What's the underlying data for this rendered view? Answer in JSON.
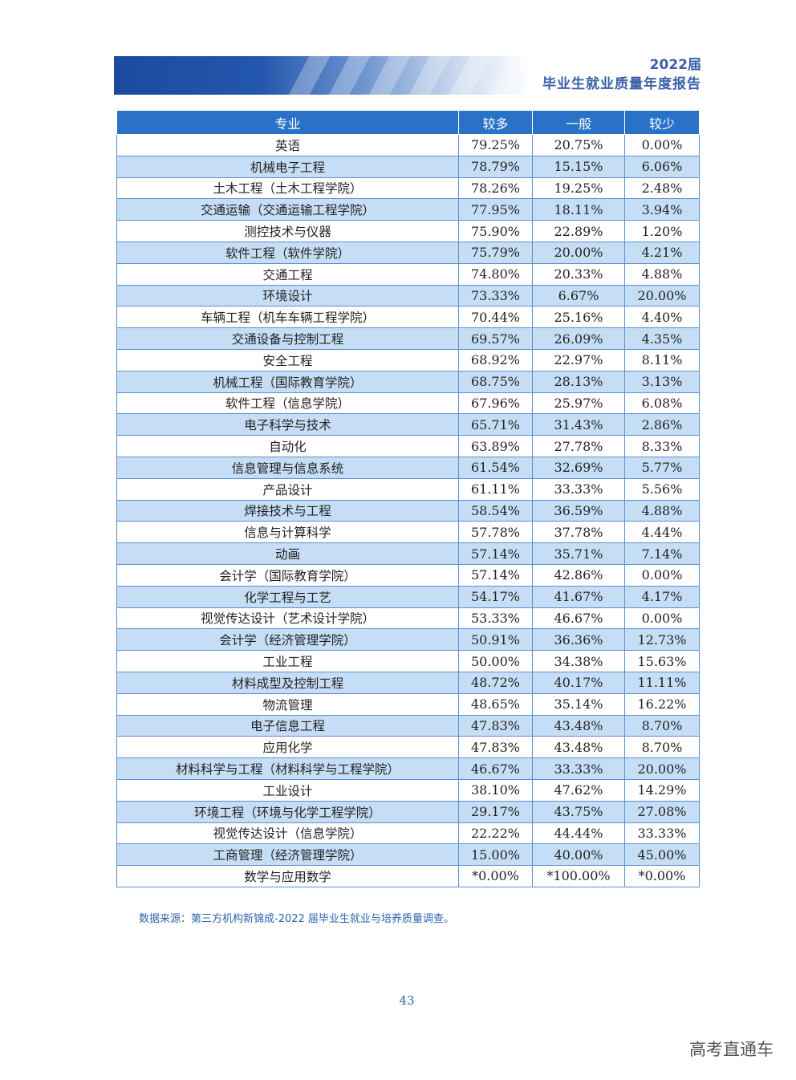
{
  "header": {
    "year": "2022届",
    "subtitle": "毕业生就业质量年度报告"
  },
  "table": {
    "columns": [
      "专业",
      "较多",
      "一般",
      "较少"
    ],
    "rows": [
      [
        "英语",
        "79.25%",
        "20.75%",
        "0.00%"
      ],
      [
        "机械电子工程",
        "78.79%",
        "15.15%",
        "6.06%"
      ],
      [
        "土木工程（土木工程学院）",
        "78.26%",
        "19.25%",
        "2.48%"
      ],
      [
        "交通运输（交通运输工程学院）",
        "77.95%",
        "18.11%",
        "3.94%"
      ],
      [
        "测控技术与仪器",
        "75.90%",
        "22.89%",
        "1.20%"
      ],
      [
        "软件工程（软件学院）",
        "75.79%",
        "20.00%",
        "4.21%"
      ],
      [
        "交通工程",
        "74.80%",
        "20.33%",
        "4.88%"
      ],
      [
        "环境设计",
        "73.33%",
        "6.67%",
        "20.00%"
      ],
      [
        "车辆工程（机车车辆工程学院）",
        "70.44%",
        "25.16%",
        "4.40%"
      ],
      [
        "交通设备与控制工程",
        "69.57%",
        "26.09%",
        "4.35%"
      ],
      [
        "安全工程",
        "68.92%",
        "22.97%",
        "8.11%"
      ],
      [
        "机械工程（国际教育学院）",
        "68.75%",
        "28.13%",
        "3.13%"
      ],
      [
        "软件工程（信息学院）",
        "67.96%",
        "25.97%",
        "6.08%"
      ],
      [
        "电子科学与技术",
        "65.71%",
        "31.43%",
        "2.86%"
      ],
      [
        "自动化",
        "63.89%",
        "27.78%",
        "8.33%"
      ],
      [
        "信息管理与信息系统",
        "61.54%",
        "32.69%",
        "5.77%"
      ],
      [
        "产品设计",
        "61.11%",
        "33.33%",
        "5.56%"
      ],
      [
        "焊接技术与工程",
        "58.54%",
        "36.59%",
        "4.88%"
      ],
      [
        "信息与计算科学",
        "57.78%",
        "37.78%",
        "4.44%"
      ],
      [
        "动画",
        "57.14%",
        "35.71%",
        "7.14%"
      ],
      [
        "会计学（国际教育学院）",
        "57.14%",
        "42.86%",
        "0.00%"
      ],
      [
        "化学工程与工艺",
        "54.17%",
        "41.67%",
        "4.17%"
      ],
      [
        "视觉传达设计（艺术设计学院）",
        "53.33%",
        "46.67%",
        "0.00%"
      ],
      [
        "会计学（经济管理学院）",
        "50.91%",
        "36.36%",
        "12.73%"
      ],
      [
        "工业工程",
        "50.00%",
        "34.38%",
        "15.63%"
      ],
      [
        "材料成型及控制工程",
        "48.72%",
        "40.17%",
        "11.11%"
      ],
      [
        "物流管理",
        "48.65%",
        "35.14%",
        "16.22%"
      ],
      [
        "电子信息工程",
        "47.83%",
        "43.48%",
        "8.70%"
      ],
      [
        "应用化学",
        "47.83%",
        "43.48%",
        "8.70%"
      ],
      [
        "材料科学与工程（材料科学与工程学院）",
        "46.67%",
        "33.33%",
        "20.00%"
      ],
      [
        "工业设计",
        "38.10%",
        "47.62%",
        "14.29%"
      ],
      [
        "环境工程（环境与化学工程学院）",
        "29.17%",
        "43.75%",
        "27.08%"
      ],
      [
        "视觉传达设计（信息学院）",
        "22.22%",
        "44.44%",
        "33.33%"
      ],
      [
        "工商管理（经济管理学院）",
        "15.00%",
        "40.00%",
        "45.00%"
      ],
      [
        "数学与应用数学",
        "*0.00%",
        "*100.00%",
        "*0.00%"
      ]
    ]
  },
  "footnote": "数据来源：第三方机构新锦成-2022 届毕业生就业与培养质量调查。",
  "page_number": "43",
  "watermark": "高考直通车",
  "colors": {
    "header_blue": "#2a72c8",
    "row_alt": "#c6def5",
    "text_blue": "#2e64b0"
  }
}
